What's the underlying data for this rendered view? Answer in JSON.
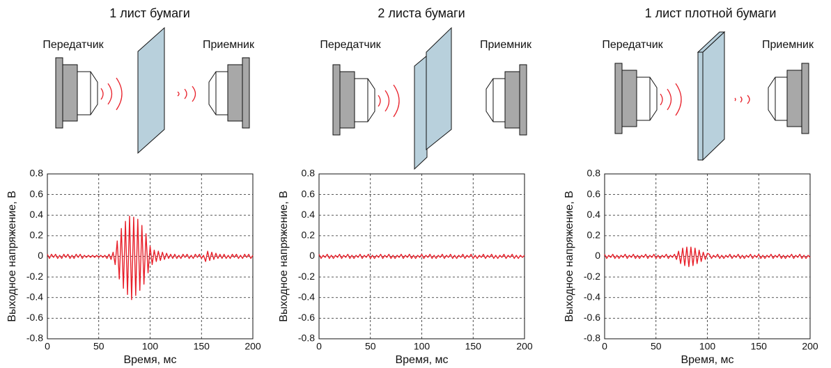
{
  "chart_data": [
    {
      "type": "line",
      "title": "1 лист бумаги",
      "transmitter_label": "Передатчик",
      "receiver_label": "Приемник",
      "xlabel": "Время, мс",
      "ylabel": "Выходное напряжение, В",
      "color": "#e8202a",
      "grid": true,
      "xlim": [
        0,
        200
      ],
      "xticks": [
        0,
        50,
        100,
        150,
        200
      ],
      "ylim": [
        -0.8,
        0.8
      ],
      "yticks": [
        -0.8,
        -0.6,
        -0.4,
        -0.2,
        0,
        0.2,
        0.4,
        0.6,
        0.8
      ],
      "x": [
        0,
        2,
        4,
        6,
        8,
        10,
        12,
        14,
        16,
        18,
        20,
        22,
        24,
        26,
        28,
        30,
        32,
        34,
        36,
        38,
        40,
        42,
        44,
        46,
        48,
        50,
        52,
        54,
        56,
        58,
        60,
        62,
        64,
        66,
        68,
        70,
        72,
        74,
        76,
        78,
        80,
        82,
        84,
        86,
        88,
        90,
        92,
        94,
        96,
        98,
        100,
        102,
        104,
        106,
        108,
        110,
        112,
        114,
        116,
        118,
        120,
        122,
        124,
        126,
        128,
        130,
        132,
        134,
        136,
        138,
        140,
        142,
        144,
        146,
        148,
        150,
        152,
        154,
        156,
        158,
        160,
        162,
        164,
        166,
        168,
        170,
        172,
        174,
        176,
        178,
        180,
        182,
        184,
        186,
        188,
        190,
        192,
        194,
        196,
        198,
        200
      ],
      "values": [
        0.02,
        -0.02,
        0.02,
        -0.01,
        0.02,
        -0.02,
        0.01,
        -0.02,
        0.02,
        -0.01,
        0.02,
        -0.02,
        0.01,
        -0.02,
        0.02,
        -0.01,
        0.02,
        -0.02,
        0.01,
        -0.01,
        0.01,
        -0.01,
        0.01,
        -0.01,
        0.01,
        -0.01,
        0.01,
        -0.01,
        0.01,
        -0.02,
        0.02,
        -0.03,
        0.04,
        -0.08,
        0.15,
        -0.22,
        0.27,
        -0.31,
        0.34,
        -0.37,
        0.39,
        -0.42,
        0.38,
        -0.38,
        0.36,
        -0.33,
        0.3,
        -0.27,
        0.22,
        -0.16,
        0.1,
        -0.08,
        0.06,
        -0.05,
        0.05,
        -0.04,
        0.04,
        -0.03,
        0.03,
        -0.02,
        0.02,
        -0.02,
        0.02,
        -0.02,
        0.01,
        -0.02,
        0.02,
        -0.01,
        0.02,
        -0.02,
        0.01,
        -0.02,
        0.02,
        -0.01,
        0.02,
        -0.02,
        0.01,
        -0.05,
        0.05,
        -0.04,
        0.04,
        -0.03,
        0.03,
        -0.02,
        0.02,
        -0.02,
        0.02,
        -0.02,
        0.01,
        -0.02,
        0.02,
        -0.01,
        0.02,
        -0.02,
        0.01,
        -0.02,
        0.02,
        -0.01,
        0.02,
        -0.02,
        0.01
      ]
    },
    {
      "type": "line",
      "title": "2 листа бумаги",
      "transmitter_label": "Передатчик",
      "receiver_label": "Приемник",
      "xlabel": "Время, мс",
      "ylabel": "Выходное напряжение, В",
      "color": "#e8202a",
      "grid": true,
      "xlim": [
        0,
        200
      ],
      "xticks": [
        0,
        50,
        100,
        150,
        200
      ],
      "ylim": [
        -0.8,
        0.8
      ],
      "yticks": [
        -0.8,
        -0.6,
        -0.4,
        -0.2,
        0,
        0.2,
        0.4,
        0.6,
        0.8
      ],
      "x": [
        0,
        2,
        4,
        6,
        8,
        10,
        12,
        14,
        16,
        18,
        20,
        22,
        24,
        26,
        28,
        30,
        32,
        34,
        36,
        38,
        40,
        42,
        44,
        46,
        48,
        50,
        52,
        54,
        56,
        58,
        60,
        62,
        64,
        66,
        68,
        70,
        72,
        74,
        76,
        78,
        80,
        82,
        84,
        86,
        88,
        90,
        92,
        94,
        96,
        98,
        100,
        102,
        104,
        106,
        108,
        110,
        112,
        114,
        116,
        118,
        120,
        122,
        124,
        126,
        128,
        130,
        132,
        134,
        136,
        138,
        140,
        142,
        144,
        146,
        148,
        150,
        152,
        154,
        156,
        158,
        160,
        162,
        164,
        166,
        168,
        170,
        172,
        174,
        176,
        178,
        180,
        182,
        184,
        186,
        188,
        190,
        192,
        194,
        196,
        198,
        200
      ],
      "values": [
        0.02,
        -0.02,
        0.01,
        -0.01,
        0.02,
        -0.02,
        0.01,
        -0.02,
        0.01,
        -0.01,
        0.02,
        -0.02,
        0.01,
        -0.01,
        0.02,
        -0.02,
        0.01,
        -0.02,
        0.01,
        -0.01,
        0.02,
        -0.02,
        0.01,
        -0.01,
        0.02,
        -0.02,
        0.01,
        -0.02,
        0.01,
        -0.01,
        0.02,
        -0.02,
        0.01,
        -0.01,
        0.02,
        -0.02,
        0.01,
        -0.02,
        0.01,
        -0.01,
        0.02,
        -0.02,
        0.01,
        -0.01,
        0.02,
        -0.02,
        0.01,
        -0.02,
        0.01,
        -0.01,
        0.02,
        -0.02,
        0.01,
        -0.01,
        0.02,
        -0.02,
        0.01,
        -0.02,
        0.01,
        -0.01,
        0.02,
        -0.02,
        0.01,
        -0.01,
        0.02,
        -0.02,
        0.01,
        -0.02,
        0.01,
        -0.01,
        0.02,
        -0.02,
        0.01,
        -0.01,
        0.02,
        -0.02,
        0.01,
        -0.02,
        0.01,
        -0.01,
        0.02,
        -0.02,
        0.01,
        -0.01,
        0.02,
        -0.02,
        0.01,
        -0.02,
        0.01,
        -0.01,
        0.02,
        -0.02,
        0.01,
        -0.01,
        0.02,
        -0.02,
        0.01,
        -0.02,
        0.01,
        -0.01,
        0.01
      ]
    },
    {
      "type": "line",
      "title": "1 лист плотной бумаги",
      "transmitter_label": "Передатчик",
      "receiver_label": "Приемник",
      "xlabel": "Время, мс",
      "ylabel": "Выходное напряжение, В",
      "color": "#e8202a",
      "grid": true,
      "xlim": [
        0,
        200
      ],
      "xticks": [
        0,
        50,
        100,
        150,
        200
      ],
      "ylim": [
        -0.8,
        0.8
      ],
      "yticks": [
        -0.8,
        -0.6,
        -0.4,
        -0.2,
        0,
        0.2,
        0.4,
        0.6,
        0.8
      ],
      "x": [
        0,
        2,
        4,
        6,
        8,
        10,
        12,
        14,
        16,
        18,
        20,
        22,
        24,
        26,
        28,
        30,
        32,
        34,
        36,
        38,
        40,
        42,
        44,
        46,
        48,
        50,
        52,
        54,
        56,
        58,
        60,
        62,
        64,
        66,
        68,
        70,
        72,
        74,
        76,
        78,
        80,
        82,
        84,
        86,
        88,
        90,
        92,
        94,
        96,
        98,
        100,
        102,
        104,
        106,
        108,
        110,
        112,
        114,
        116,
        118,
        120,
        122,
        124,
        126,
        128,
        130,
        132,
        134,
        136,
        138,
        140,
        142,
        144,
        146,
        148,
        150,
        152,
        154,
        156,
        158,
        160,
        162,
        164,
        166,
        168,
        170,
        172,
        174,
        176,
        178,
        180,
        182,
        184,
        186,
        188,
        190,
        192,
        194,
        196,
        198,
        200
      ],
      "values": [
        0.02,
        -0.02,
        0.01,
        -0.01,
        0.02,
        -0.02,
        0.01,
        -0.02,
        0.01,
        -0.01,
        0.02,
        -0.02,
        0.01,
        -0.01,
        0.02,
        -0.02,
        0.01,
        -0.02,
        0.01,
        -0.01,
        0.02,
        -0.02,
        0.01,
        -0.01,
        0.02,
        -0.02,
        0.01,
        -0.02,
        0.01,
        -0.01,
        0.02,
        -0.02,
        0.01,
        -0.01,
        0.02,
        -0.03,
        0.05,
        -0.07,
        0.08,
        -0.09,
        0.09,
        -0.1,
        0.09,
        -0.09,
        0.08,
        -0.07,
        0.06,
        -0.05,
        0.04,
        -0.03,
        0.03,
        0.02,
        -0.02,
        0.01,
        -0.01,
        0.02,
        -0.02,
        0.01,
        -0.02,
        0.01,
        -0.01,
        0.02,
        -0.02,
        0.01,
        -0.01,
        0.02,
        -0.02,
        0.01,
        -0.02,
        0.01,
        -0.01,
        0.02,
        -0.02,
        0.01,
        -0.01,
        0.02,
        -0.02,
        0.01,
        -0.02,
        0.01,
        -0.01,
        0.02,
        -0.02,
        0.01,
        -0.01,
        0.02,
        -0.02,
        0.01,
        -0.02,
        0.01,
        -0.01,
        0.02,
        -0.02,
        0.01,
        -0.01,
        0.02,
        -0.02,
        0.01,
        -0.02,
        0.01,
        -0.01
      ]
    }
  ]
}
